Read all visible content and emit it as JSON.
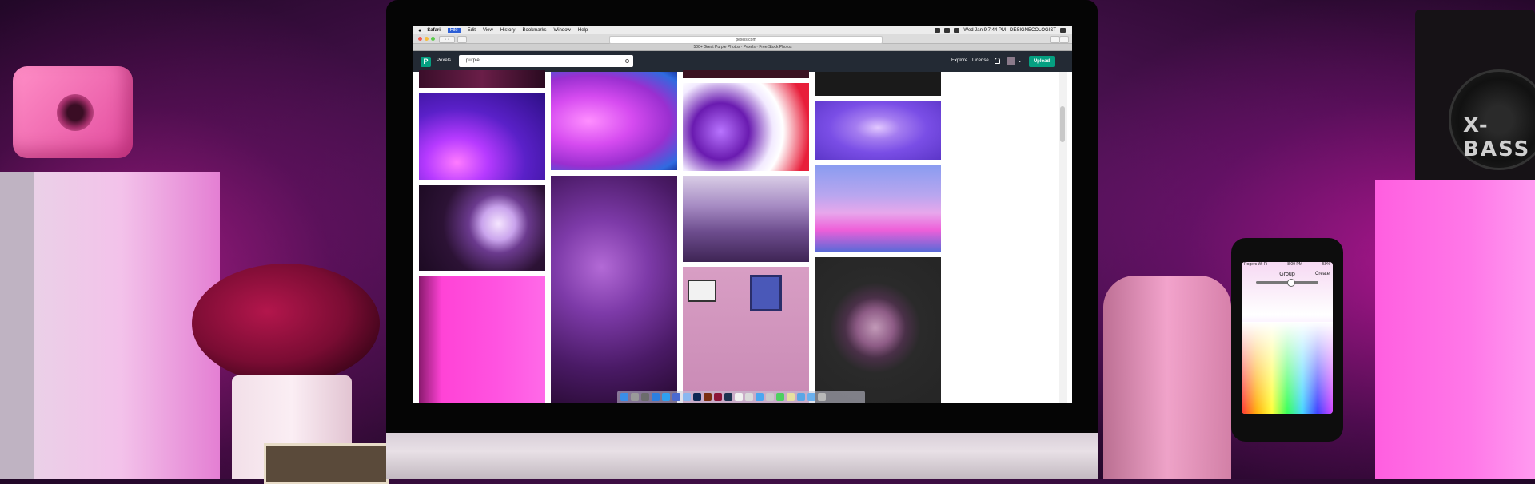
{
  "menubar": {
    "apple_symbol": "",
    "app_name": "Safari",
    "items": [
      "File",
      "Edit",
      "View",
      "History",
      "Bookmarks",
      "Window",
      "Help"
    ],
    "active_item": "File",
    "clock": "Wed Jan 9  7:44 PM",
    "user": "DESIGNECOLOGIST"
  },
  "browser": {
    "address": "pexels.com",
    "page_title": "500+ Great Purple Photos · Pexels · Free Stock Photos",
    "nav_arrows": "‹ ›"
  },
  "site": {
    "logo_letter": "P",
    "name": "Pexels",
    "search_value": "purple",
    "nav": {
      "explore": "Explore",
      "license": "License"
    },
    "upload_label": "Upload",
    "chevron": "⌄"
  },
  "phone": {
    "carrier": "Rogers Wi-Fi",
    "time": "8:09 PM",
    "battery": "59%",
    "title": "Group",
    "action": "Create"
  },
  "speaker_brand": "X-BASS",
  "photos_colors": {
    "accent": "#05a081",
    "header": "#232a34"
  }
}
